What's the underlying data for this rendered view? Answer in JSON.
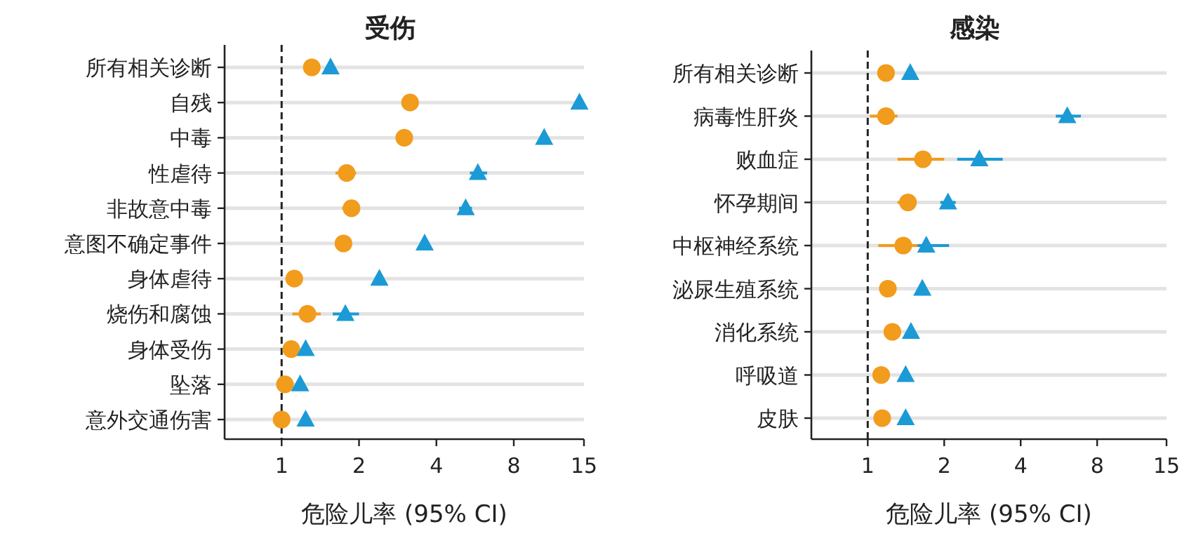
{
  "chart_data": [
    {
      "type": "scatter",
      "orientation": "horizontal",
      "title": "受伤",
      "xlabel": "危险儿率 (95% CI)",
      "log": "x",
      "grid": "y",
      "categories": [
        "所有相关诊断",
        "自残",
        "中毒",
        "性虐待",
        "非故意中毒",
        "意图不确定事件",
        "身体虐待",
        "烧伤和腐蚀",
        "身体受伤",
        "坠落",
        "意外交通伤害"
      ],
      "xlim": [
        0.6,
        15
      ],
      "xticks": [
        1,
        2,
        4,
        8,
        15
      ],
      "ref_lines": [
        {
          "axis": "x",
          "value": 1,
          "line_style": "dashed",
          "color": "#222222"
        }
      ],
      "series": [
        {
          "color": "#f19c1c",
          "marker": "circle",
          "values": [
            1.31,
            3.16,
            3.0,
            1.79,
            1.87,
            1.74,
            1.12,
            1.26,
            1.09,
            1.03,
            1.0
          ],
          "errors": [
            null,
            null,
            null,
            [
              1.62,
              1.95
            ],
            [
              1.72,
              1.98
            ],
            [
              1.62,
              1.84
            ],
            null,
            [
              1.1,
              1.42
            ],
            null,
            null,
            null
          ]
        },
        {
          "color": "#1b9ad6",
          "marker": "triangle",
          "values": [
            1.55,
            14.4,
            10.5,
            5.8,
            5.2,
            3.6,
            2.4,
            1.77,
            1.24,
            1.18,
            1.24
          ],
          "errors": [
            null,
            null,
            null,
            [
              5.4,
              6.3
            ],
            [
              4.9,
              5.5
            ],
            null,
            null,
            [
              1.58,
              2.0
            ],
            null,
            null,
            null
          ]
        }
      ]
    },
    {
      "type": "scatter",
      "orientation": "horizontal",
      "title": "感染",
      "xlabel": "危险儿率 (95% CI)",
      "log": "x",
      "grid": "y",
      "categories": [
        "所有相关诊断",
        "病毒性肝炎",
        "败血症",
        "怀孕期间",
        "中枢神经系统",
        "泌尿生殖系统",
        "消化系统",
        "呼吸道",
        "皮肤"
      ],
      "xlim": [
        0.6,
        15
      ],
      "xticks": [
        1,
        2,
        4,
        8,
        15
      ],
      "ref_lines": [
        {
          "axis": "x",
          "value": 1,
          "line_style": "dashed",
          "color": "#222222"
        }
      ],
      "series": [
        {
          "color": "#f19c1c",
          "marker": "circle",
          "values": [
            1.18,
            1.18,
            1.65,
            1.44,
            1.38,
            1.2,
            1.25,
            1.13,
            1.14
          ],
          "errors": [
            null,
            [
              1.02,
              1.31
            ],
            [
              1.31,
              2.0
            ],
            [
              1.31,
              1.55
            ],
            [
              1.1,
              1.63
            ],
            null,
            null,
            null,
            null
          ]
        },
        {
          "color": "#1b9ad6",
          "marker": "triangle",
          "values": [
            1.47,
            6.1,
            2.75,
            2.07,
            1.7,
            1.64,
            1.48,
            1.41,
            1.41
          ],
          "errors": [
            null,
            [
              5.5,
              6.9
            ],
            [
              2.25,
              3.4
            ],
            [
              1.93,
              2.22
            ],
            [
              1.57,
              2.09
            ],
            null,
            null,
            null,
            null
          ]
        }
      ]
    }
  ]
}
